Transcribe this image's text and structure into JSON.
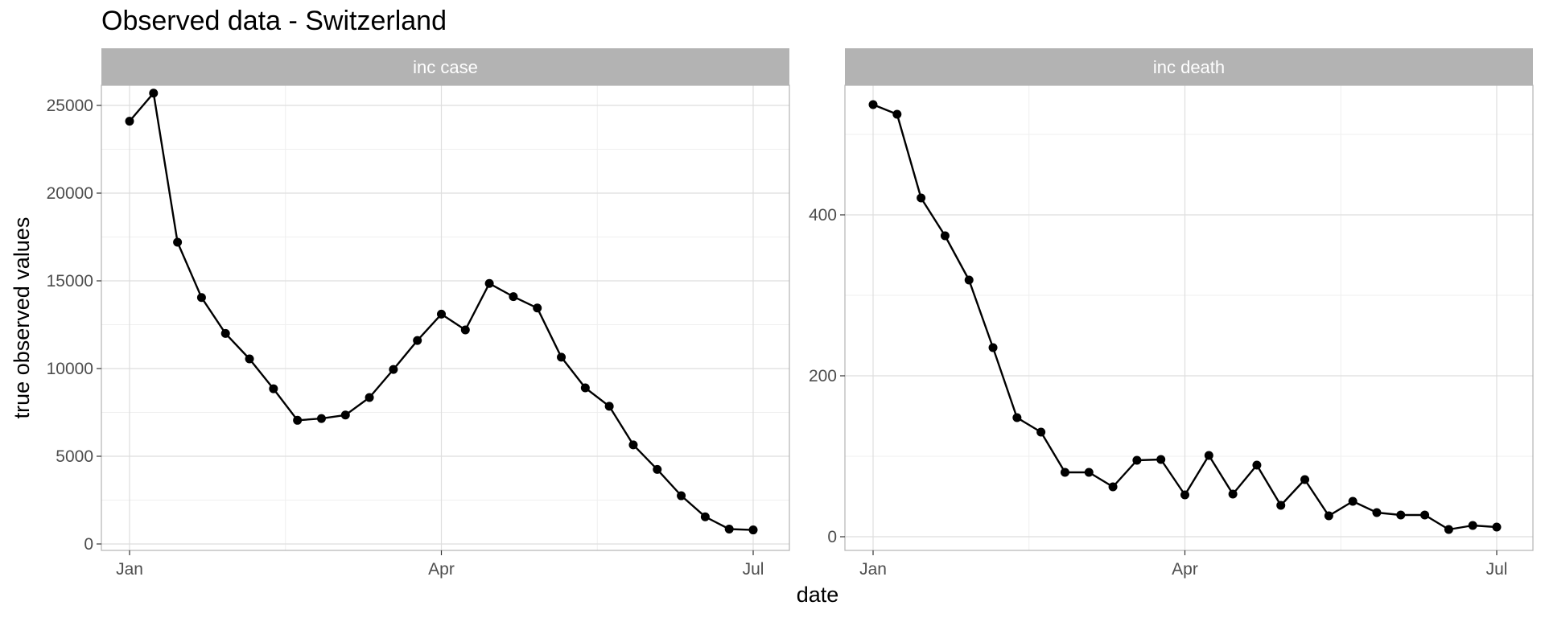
{
  "chart_data": {
    "type": "line",
    "title": "Observed data - Switzerland",
    "xlabel": "date",
    "ylabel": "true observed values",
    "x_ticks": [
      {
        "label": "Jan",
        "date": "2021-01-02"
      },
      {
        "label": "Apr",
        "date": "2021-04-03"
      },
      {
        "label": "Jul",
        "date": "2021-07-03"
      }
    ],
    "x": [
      "2021-01-02",
      "2021-01-09",
      "2021-01-16",
      "2021-01-23",
      "2021-01-30",
      "2021-02-06",
      "2021-02-13",
      "2021-02-20",
      "2021-02-27",
      "2021-03-06",
      "2021-03-13",
      "2021-03-20",
      "2021-03-27",
      "2021-04-03",
      "2021-04-10",
      "2021-04-17",
      "2021-04-24",
      "2021-05-01",
      "2021-05-08",
      "2021-05-15",
      "2021-05-22",
      "2021-05-29",
      "2021-06-05",
      "2021-06-12",
      "2021-06-19",
      "2021-06-26",
      "2021-07-03"
    ],
    "panels": [
      {
        "name": "inc case",
        "ylim": [
          0,
          27000
        ],
        "y_ticks": [
          0,
          5000,
          10000,
          15000,
          20000,
          25000
        ],
        "values": [
          24100,
          25700,
          17200,
          14050,
          12000,
          10550,
          8850,
          7050,
          7150,
          7350,
          8350,
          9950,
          11600,
          13100,
          12200,
          14850,
          14100,
          13450,
          10650,
          8900,
          7850,
          5650,
          4250,
          2750,
          1550,
          850,
          800
        ]
      },
      {
        "name": "inc death",
        "ylim": [
          0,
          550
        ],
        "y_ticks": [
          0,
          200,
          400
        ],
        "values": [
          537,
          525,
          421,
          374,
          319,
          235,
          148,
          130,
          80,
          80,
          62,
          95,
          96,
          52,
          101,
          53,
          89,
          39,
          71,
          26,
          44,
          30,
          27,
          27,
          9,
          14,
          12
        ]
      }
    ],
    "grid": true,
    "legend": "none"
  },
  "colors": {
    "line": "#000000",
    "strip_background": "#b3b3b3",
    "grid_major": "#dedede",
    "grid_minor": "#efefef",
    "panel_border": "#b3b3b3"
  }
}
